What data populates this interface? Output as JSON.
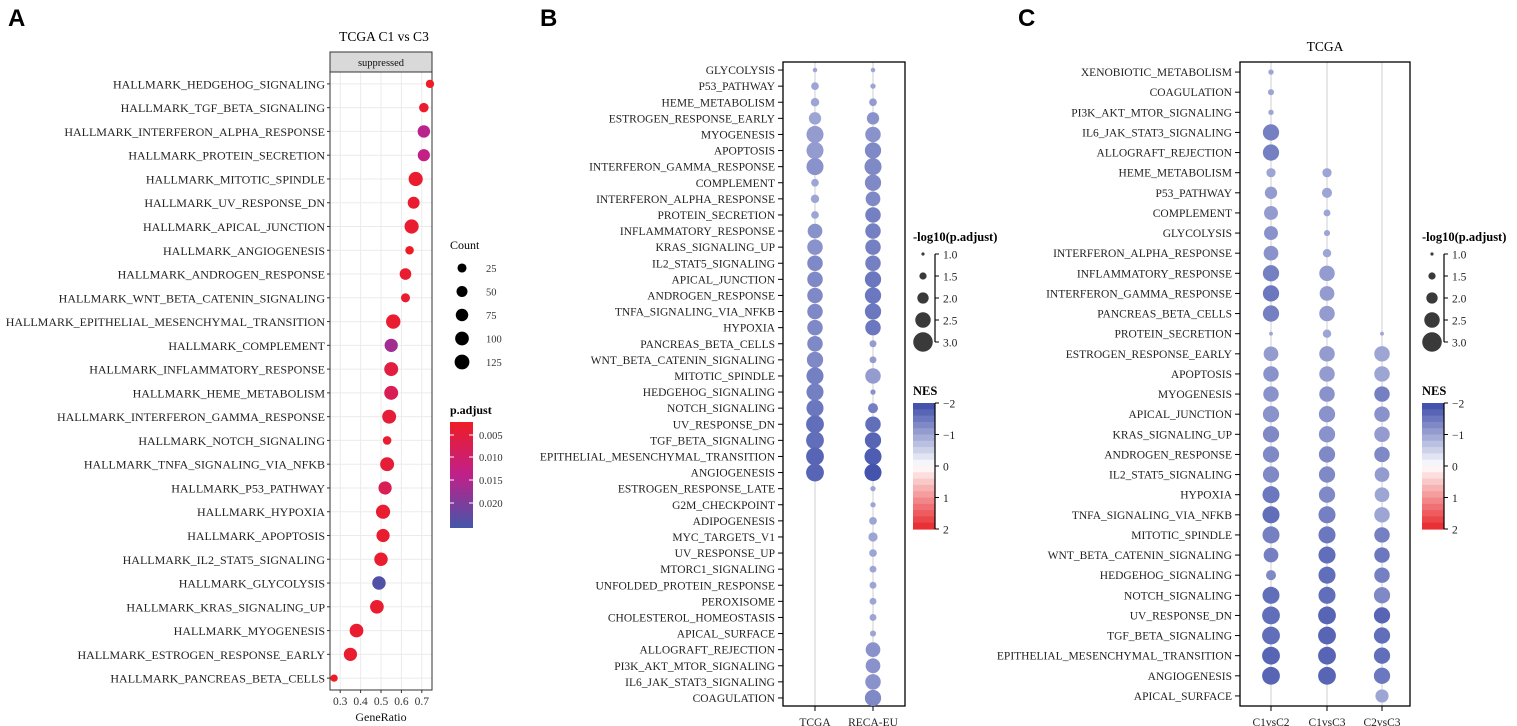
{
  "chart_data": [
    {
      "panel": "A",
      "type": "scatter",
      "title": "TCGA C1 vs C3",
      "facet_label": "suppressed",
      "xlabel": "GeneRatio",
      "xlim": [
        0.25,
        0.75
      ],
      "xticks": [
        0.3,
        0.4,
        0.5,
        0.6,
        0.7
      ],
      "xtick_labels": [
        "0.3",
        "0.4",
        "0.5",
        "0.6",
        "0.7"
      ],
      "legend_count": {
        "title": "Count",
        "values": [
          25,
          50,
          75,
          100,
          125
        ]
      },
      "legend_color": {
        "title": "p.adjust",
        "ticks": [
          "0.005",
          "0.010",
          "0.015",
          "0.020"
        ],
        "high_color": "#ee1c25",
        "mid_color": "#c0208a",
        "low_color": "#4456a9"
      },
      "categories": [
        "HALLMARK_HEDGEHOG_SIGNALING",
        "HALLMARK_TGF_BETA_SIGNALING",
        "HALLMARK_INTERFERON_ALPHA_RESPONSE",
        "HALLMARK_PROTEIN_SECRETION",
        "HALLMARK_MITOTIC_SPINDLE",
        "HALLMARK_UV_RESPONSE_DN",
        "HALLMARK_APICAL_JUNCTION",
        "HALLMARK_ANGIOGENESIS",
        "HALLMARK_ANDROGEN_RESPONSE",
        "HALLMARK_WNT_BETA_CATENIN_SIGNALING",
        "HALLMARK_EPITHELIAL_MESENCHYMAL_TRANSITION",
        "HALLMARK_COMPLEMENT",
        "HALLMARK_INFLAMMATORY_RESPONSE",
        "HALLMARK_HEME_METABOLISM",
        "HALLMARK_INTERFERON_GAMMA_RESPONSE",
        "HALLMARK_NOTCH_SIGNALING",
        "HALLMARK_TNFA_SIGNALING_VIA_NFKB",
        "HALLMARK_P53_PATHWAY",
        "HALLMARK_HYPOXIA",
        "HALLMARK_APOPTOSIS",
        "HALLMARK_IL2_STAT5_SIGNALING",
        "HALLMARK_GLYCOLYSIS",
        "HALLMARK_KRAS_SIGNALING_UP",
        "HALLMARK_MYOGENESIS",
        "HALLMARK_ESTROGEN_RESPONSE_EARLY",
        "HALLMARK_PANCREAS_BETA_CELLS"
      ],
      "x": [
        0.74,
        0.71,
        0.71,
        0.71,
        0.67,
        0.66,
        0.65,
        0.64,
        0.62,
        0.62,
        0.56,
        0.55,
        0.55,
        0.55,
        0.54,
        0.53,
        0.53,
        0.52,
        0.51,
        0.51,
        0.5,
        0.49,
        0.48,
        0.38,
        0.35,
        0.27
      ],
      "count": [
        18,
        30,
        75,
        70,
        110,
        65,
        110,
        20,
        60,
        25,
        115,
        90,
        105,
        105,
        105,
        20,
        105,
        90,
        110,
        90,
        95,
        95,
        100,
        100,
        90,
        10
      ],
      "p_adjust": [
        0.001,
        0.002,
        0.012,
        0.011,
        0.002,
        0.002,
        0.002,
        0.001,
        0.002,
        0.002,
        0.002,
        0.014,
        0.004,
        0.006,
        0.003,
        0.002,
        0.003,
        0.006,
        0.002,
        0.002,
        0.002,
        0.021,
        0.002,
        0.002,
        0.002,
        0.001
      ]
    },
    {
      "panel": "B",
      "type": "scatter",
      "columns": [
        "TCGA",
        "RECA-EU"
      ],
      "legend_size": {
        "title": "-log10(p.adjust)",
        "ticks": [
          "1.0",
          "1.5",
          "2.0",
          "2.5",
          "3.0"
        ]
      },
      "legend_color": {
        "title": "NES",
        "ticks": [
          "−2",
          "−1",
          "0",
          "1",
          "2"
        ],
        "neg_color": "#3a4aa8",
        "mid_color": "#ffffff",
        "pos_color": "#e8252a"
      },
      "categories": [
        "GLYCOLYSIS",
        "P53_PATHWAY",
        "HEME_METABOLISM",
        "ESTROGEN_RESPONSE_EARLY",
        "MYOGENESIS",
        "APOPTOSIS",
        "INTERFERON_GAMMA_RESPONSE",
        "COMPLEMENT",
        "INTERFERON_ALPHA_RESPONSE",
        "PROTEIN_SECRETION",
        "INFLAMMATORY_RESPONSE",
        "KRAS_SIGNALING_UP",
        "IL2_STAT5_SIGNALING",
        "APICAL_JUNCTION",
        "ANDROGEN_RESPONSE",
        "TNFA_SIGNALING_VIA_NFKB",
        "HYPOXIA",
        "PANCREAS_BETA_CELLS",
        "WNT_BETA_CATENIN_SIGNALING",
        "MITOTIC_SPINDLE",
        "HEDGEHOG_SIGNALING",
        "NOTCH_SIGNALING",
        "UV_RESPONSE_DN",
        "TGF_BETA_SIGNALING",
        "EPITHELIAL_MESENCHYMAL_TRANSITION",
        "ANGIOGENESIS",
        "ESTROGEN_RESPONSE_LATE",
        "G2M_CHECKPOINT",
        "ADIPOGENESIS",
        "MYC_TARGETS_V1",
        "UV_RESPONSE_UP",
        "MTORC1_SIGNALING",
        "UNFOLDED_PROTEIN_RESPONSE",
        "PEROXISOME",
        "CHOLESTEROL_HOMEOSTASIS",
        "APICAL_SURFACE",
        "ALLOGRAFT_REJECTION",
        "PI3K_AKT_MTOR_SIGNALING",
        "IL6_JAK_STAT3_SIGNALING",
        "COAGULATION"
      ],
      "series": [
        {
          "name": "TCGA",
          "size": [
            1.2,
            1.6,
            1.7,
            2.2,
            2.8,
            2.8,
            2.8,
            1.6,
            1.7,
            1.6,
            2.5,
            2.6,
            2.6,
            2.6,
            2.6,
            2.6,
            2.6,
            2.6,
            2.7,
            2.8,
            2.8,
            2.8,
            2.9,
            2.9,
            2.9,
            2.9,
            null,
            null,
            null,
            null,
            null,
            null,
            null,
            null,
            null,
            null,
            null,
            null,
            null,
            null
          ],
          "nes": [
            -1.0,
            -1.0,
            -1.0,
            -1.0,
            -1.1,
            -1.1,
            -1.2,
            -1.0,
            -1.0,
            -1.0,
            -1.2,
            -1.2,
            -1.3,
            -1.3,
            -1.3,
            -1.3,
            -1.3,
            -1.3,
            -1.3,
            -1.4,
            -1.4,
            -1.5,
            -1.6,
            -1.6,
            -1.7,
            -1.7,
            null,
            null,
            null,
            null,
            null,
            null,
            null,
            null,
            null,
            null,
            null,
            null,
            null,
            null
          ]
        },
        {
          "name": "RECA-EU",
          "size": [
            1.2,
            1.3,
            1.6,
            2.2,
            2.6,
            2.7,
            2.8,
            2.7,
            2.5,
            2.6,
            2.6,
            2.6,
            2.6,
            2.7,
            2.7,
            2.7,
            2.6,
            1.5,
            1.5,
            2.6,
            1.3,
            1.9,
            2.6,
            2.7,
            2.8,
            2.8,
            1.3,
            1.3,
            1.6,
            1.8,
            1.6,
            1.5,
            1.5,
            1.5,
            1.5,
            1.4,
            2.5,
            2.5,
            2.6,
            2.7
          ],
          "nes": [
            -1.0,
            -1.0,
            -1.1,
            -1.2,
            -1.2,
            -1.3,
            -1.3,
            -1.3,
            -1.3,
            -1.4,
            -1.4,
            -1.4,
            -1.4,
            -1.5,
            -1.5,
            -1.5,
            -1.5,
            -1.1,
            -1.1,
            -1.1,
            -1.2,
            -1.4,
            -1.6,
            -1.7,
            -1.8,
            -1.9,
            -1.0,
            -1.0,
            -1.0,
            -1.0,
            -1.0,
            -1.0,
            -1.0,
            -1.0,
            -1.0,
            -1.0,
            -1.2,
            -1.2,
            -1.2,
            -1.3
          ]
        }
      ]
    },
    {
      "panel": "C",
      "type": "scatter",
      "title": "TCGA",
      "columns": [
        "C1vsC2",
        "C1vsC3",
        "C2vsC3"
      ],
      "legend_size": {
        "title": "-log10(p.adjust)",
        "ticks": [
          "1.0",
          "1.5",
          "2.0",
          "2.5",
          "3.0"
        ]
      },
      "legend_color": {
        "title": "NES",
        "ticks": [
          "−2",
          "−1",
          "0",
          "1",
          "2"
        ],
        "neg_color": "#3a4aa8",
        "mid_color": "#ffffff",
        "pos_color": "#e8252a"
      },
      "categories": [
        "XENOBIOTIC_METABOLISM",
        "COAGULATION",
        "PI3K_AKT_MTOR_SIGNALING",
        "IL6_JAK_STAT3_SIGNALING",
        "ALLOGRAFT_REJECTION",
        "HEME_METABOLISM",
        "P53_PATHWAY",
        "COMPLEMENT",
        "GLYCOLYSIS",
        "INTERFERON_ALPHA_RESPONSE",
        "INFLAMMATORY_RESPONSE",
        "INTERFERON_GAMMA_RESPONSE",
        "PANCREAS_BETA_CELLS",
        "PROTEIN_SECRETION",
        "ESTROGEN_RESPONSE_EARLY",
        "APOPTOSIS",
        "MYOGENESIS",
        "APICAL_JUNCTION",
        "KRAS_SIGNALING_UP",
        "ANDROGEN_RESPONSE",
        "IL2_STAT5_SIGNALING",
        "HYPOXIA",
        "TNFA_SIGNALING_VIA_NFKB",
        "MITOTIC_SPINDLE",
        "WNT_BETA_CATENIN_SIGNALING",
        "HEDGEHOG_SIGNALING",
        "NOTCH_SIGNALING",
        "UV_RESPONSE_DN",
        "TGF_BETA_SIGNALING",
        "EPITHELIAL_MESENCHYMAL_TRANSITION",
        "ANGIOGENESIS",
        "APICAL_SURFACE"
      ],
      "series": [
        {
          "name": "C1vsC2",
          "size": [
            1.3,
            1.4,
            1.3,
            2.7,
            2.7,
            1.8,
            2.2,
            2.4,
            2.4,
            2.5,
            2.7,
            2.7,
            2.7,
            1.1,
            2.5,
            2.6,
            2.6,
            2.7,
            2.7,
            2.7,
            2.7,
            2.8,
            2.8,
            2.8,
            2.5,
            1.9,
            2.8,
            2.9,
            2.9,
            2.9,
            2.9,
            null
          ],
          "nes": [
            -1.0,
            -1.0,
            -1.0,
            -1.4,
            -1.4,
            -1.0,
            -1.1,
            -1.1,
            -1.2,
            -1.2,
            -1.4,
            -1.5,
            -1.4,
            -1.0,
            -1.1,
            -1.2,
            -1.2,
            -1.2,
            -1.3,
            -1.3,
            -1.3,
            -1.5,
            -1.6,
            -1.4,
            -1.4,
            -1.3,
            -1.6,
            -1.6,
            -1.6,
            -1.7,
            -1.7,
            null
          ]
        },
        {
          "name": "C1vsC3",
          "size": [
            null,
            null,
            null,
            null,
            null,
            1.8,
            1.9,
            1.5,
            1.4,
            1.7,
            2.6,
            2.5,
            2.6,
            1.7,
            2.6,
            2.6,
            2.6,
            2.7,
            2.7,
            2.7,
            2.7,
            2.7,
            2.8,
            2.8,
            2.8,
            2.8,
            2.8,
            2.9,
            2.9,
            2.9,
            2.9,
            null
          ],
          "nes": [
            null,
            null,
            null,
            null,
            null,
            -1.0,
            -1.0,
            -1.0,
            -1.0,
            -1.0,
            -1.1,
            -1.1,
            -1.1,
            -1.0,
            -1.1,
            -1.1,
            -1.2,
            -1.2,
            -1.2,
            -1.3,
            -1.3,
            -1.3,
            -1.4,
            -1.5,
            -1.6,
            -1.6,
            -1.6,
            -1.7,
            -1.7,
            -1.7,
            -1.7,
            null
          ]
        },
        {
          "name": "C2vsC3",
          "size": [
            null,
            null,
            null,
            null,
            null,
            null,
            null,
            null,
            null,
            null,
            null,
            null,
            null,
            1.1,
            2.6,
            2.6,
            2.6,
            2.6,
            2.6,
            2.6,
            2.5,
            2.5,
            2.6,
            2.6,
            2.6,
            2.6,
            2.7,
            2.7,
            2.7,
            2.7,
            2.7,
            2.3
          ],
          "nes": [
            null,
            null,
            null,
            null,
            null,
            null,
            null,
            null,
            null,
            null,
            null,
            null,
            null,
            -1.0,
            -1.0,
            -1.0,
            -1.4,
            -1.2,
            -1.1,
            -1.3,
            -1.1,
            -1.0,
            -1.0,
            -1.4,
            -1.5,
            -1.4,
            -1.3,
            -1.7,
            -1.6,
            -1.6,
            -1.5,
            -1.0
          ]
        }
      ]
    }
  ],
  "panel_letters": [
    "A",
    "B",
    "C"
  ]
}
